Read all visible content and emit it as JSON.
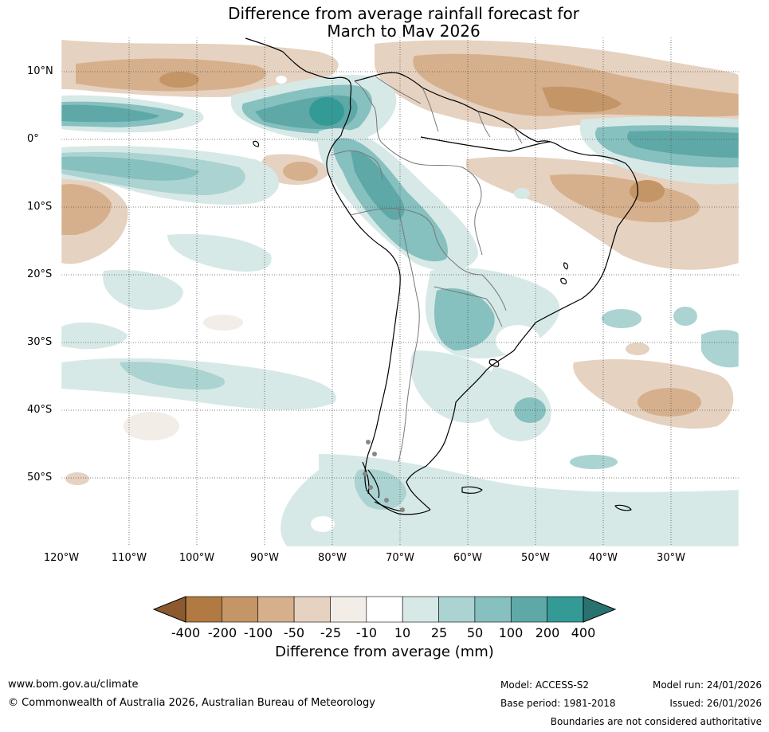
{
  "title": {
    "line1": "Difference from average rainfall forecast for",
    "line2": "March to May 2026"
  },
  "map": {
    "lat_ticks": [
      "10°N",
      "0°",
      "10°S",
      "20°S",
      "30°S",
      "40°S",
      "50°S"
    ],
    "lon_ticks": [
      "120°W",
      "110°W",
      "100°W",
      "90°W",
      "80°W",
      "70°W",
      "60°W",
      "50°W",
      "40°W",
      "30°W"
    ],
    "lat_range": [
      15,
      -60
    ],
    "lon_range": [
      -120,
      -20
    ]
  },
  "colorbar": {
    "title": "Difference from average (mm)",
    "labels": [
      "-400",
      "-200",
      "-100",
      "-50",
      "-25",
      "-10",
      "10",
      "25",
      "50",
      "100",
      "200",
      "400"
    ],
    "colors": [
      "#8c5a2e",
      "#b07a42",
      "#c49566",
      "#d6b08c",
      "#e6d2c0",
      "#f2ede6",
      "#ffffff",
      "#d6e9e7",
      "#aad3d1",
      "#86c0bf",
      "#5ea9a8",
      "#349a96",
      "#287371"
    ]
  },
  "footer": {
    "website": "www.bom.gov.au/climate",
    "copyright": "© Commonwealth of Australia 2026, Australian Bureau of Meteorology",
    "model": "Model: ACCESS-S2",
    "base_period": "Base period: 1981-2018",
    "model_run": "Model run: 24/01/2026",
    "issued": "Issued: 26/01/2026",
    "disclaimer": "Boundaries are not considered authoritative"
  }
}
